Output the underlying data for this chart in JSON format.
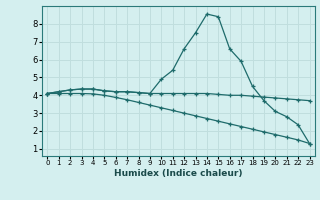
{
  "xlabel": "Humidex (Indice chaleur)",
  "background_color": "#d4efef",
  "grid_color": "#c0dede",
  "line_color": "#1e6b6b",
  "xlim": [
    -0.5,
    23.5
  ],
  "ylim": [
    0.6,
    9.0
  ],
  "yticks": [
    1,
    2,
    3,
    4,
    5,
    6,
    7,
    8
  ],
  "xticks": [
    0,
    1,
    2,
    3,
    4,
    5,
    6,
    7,
    8,
    9,
    10,
    11,
    12,
    13,
    14,
    15,
    16,
    17,
    18,
    19,
    20,
    21,
    22,
    23
  ],
  "line1_x": [
    0,
    1,
    2,
    3,
    4,
    5,
    6,
    7,
    8,
    9,
    10,
    11,
    12,
    13,
    14,
    15,
    16,
    17,
    18,
    19,
    20,
    21,
    22,
    23
  ],
  "line1_y": [
    4.1,
    4.2,
    4.3,
    4.35,
    4.35,
    4.25,
    4.2,
    4.2,
    4.15,
    4.1,
    4.9,
    5.4,
    6.6,
    7.5,
    8.55,
    8.4,
    6.6,
    5.9,
    4.5,
    3.7,
    3.1,
    2.8,
    2.35,
    1.3
  ],
  "line2_x": [
    0,
    1,
    2,
    3,
    4,
    5,
    6,
    7,
    8,
    9,
    10,
    11,
    12,
    13,
    14,
    15,
    16,
    17,
    18,
    19,
    20,
    21,
    22,
    23
  ],
  "line2_y": [
    4.1,
    4.2,
    4.3,
    4.35,
    4.35,
    4.25,
    4.2,
    4.2,
    4.15,
    4.1,
    4.1,
    4.1,
    4.1,
    4.1,
    4.1,
    4.05,
    4.0,
    4.0,
    3.95,
    3.9,
    3.85,
    3.8,
    3.75,
    3.7
  ],
  "line3_x": [
    0,
    1,
    2,
    3,
    4,
    5,
    6,
    7,
    8,
    9,
    10,
    11,
    12,
    13,
    14,
    15,
    16,
    17,
    18,
    19,
    20,
    21,
    22,
    23
  ],
  "line3_y": [
    4.1,
    4.1,
    4.1,
    4.1,
    4.08,
    4.0,
    3.88,
    3.75,
    3.6,
    3.45,
    3.3,
    3.15,
    3.0,
    2.85,
    2.7,
    2.55,
    2.4,
    2.25,
    2.1,
    1.95,
    1.8,
    1.65,
    1.5,
    1.3
  ]
}
